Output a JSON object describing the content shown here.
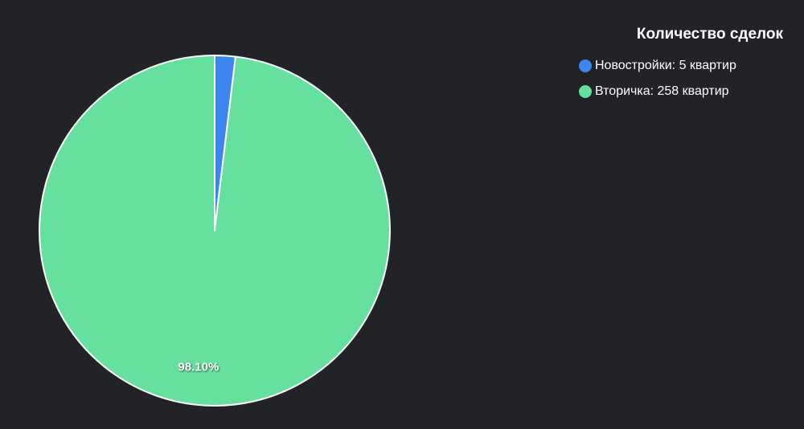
{
  "chart_data": {
    "type": "pie",
    "legend_title": "Количество сделок",
    "legend_placement": "top-right",
    "slices": [
      {
        "label": "Новостройки: 5 квартир",
        "value": 5,
        "color": "#3d86f0",
        "percent_label": ""
      },
      {
        "label": "Вторичка: 258 квартир",
        "value": 258,
        "color": "#66e09f",
        "percent_label": "98.10%"
      }
    ]
  }
}
